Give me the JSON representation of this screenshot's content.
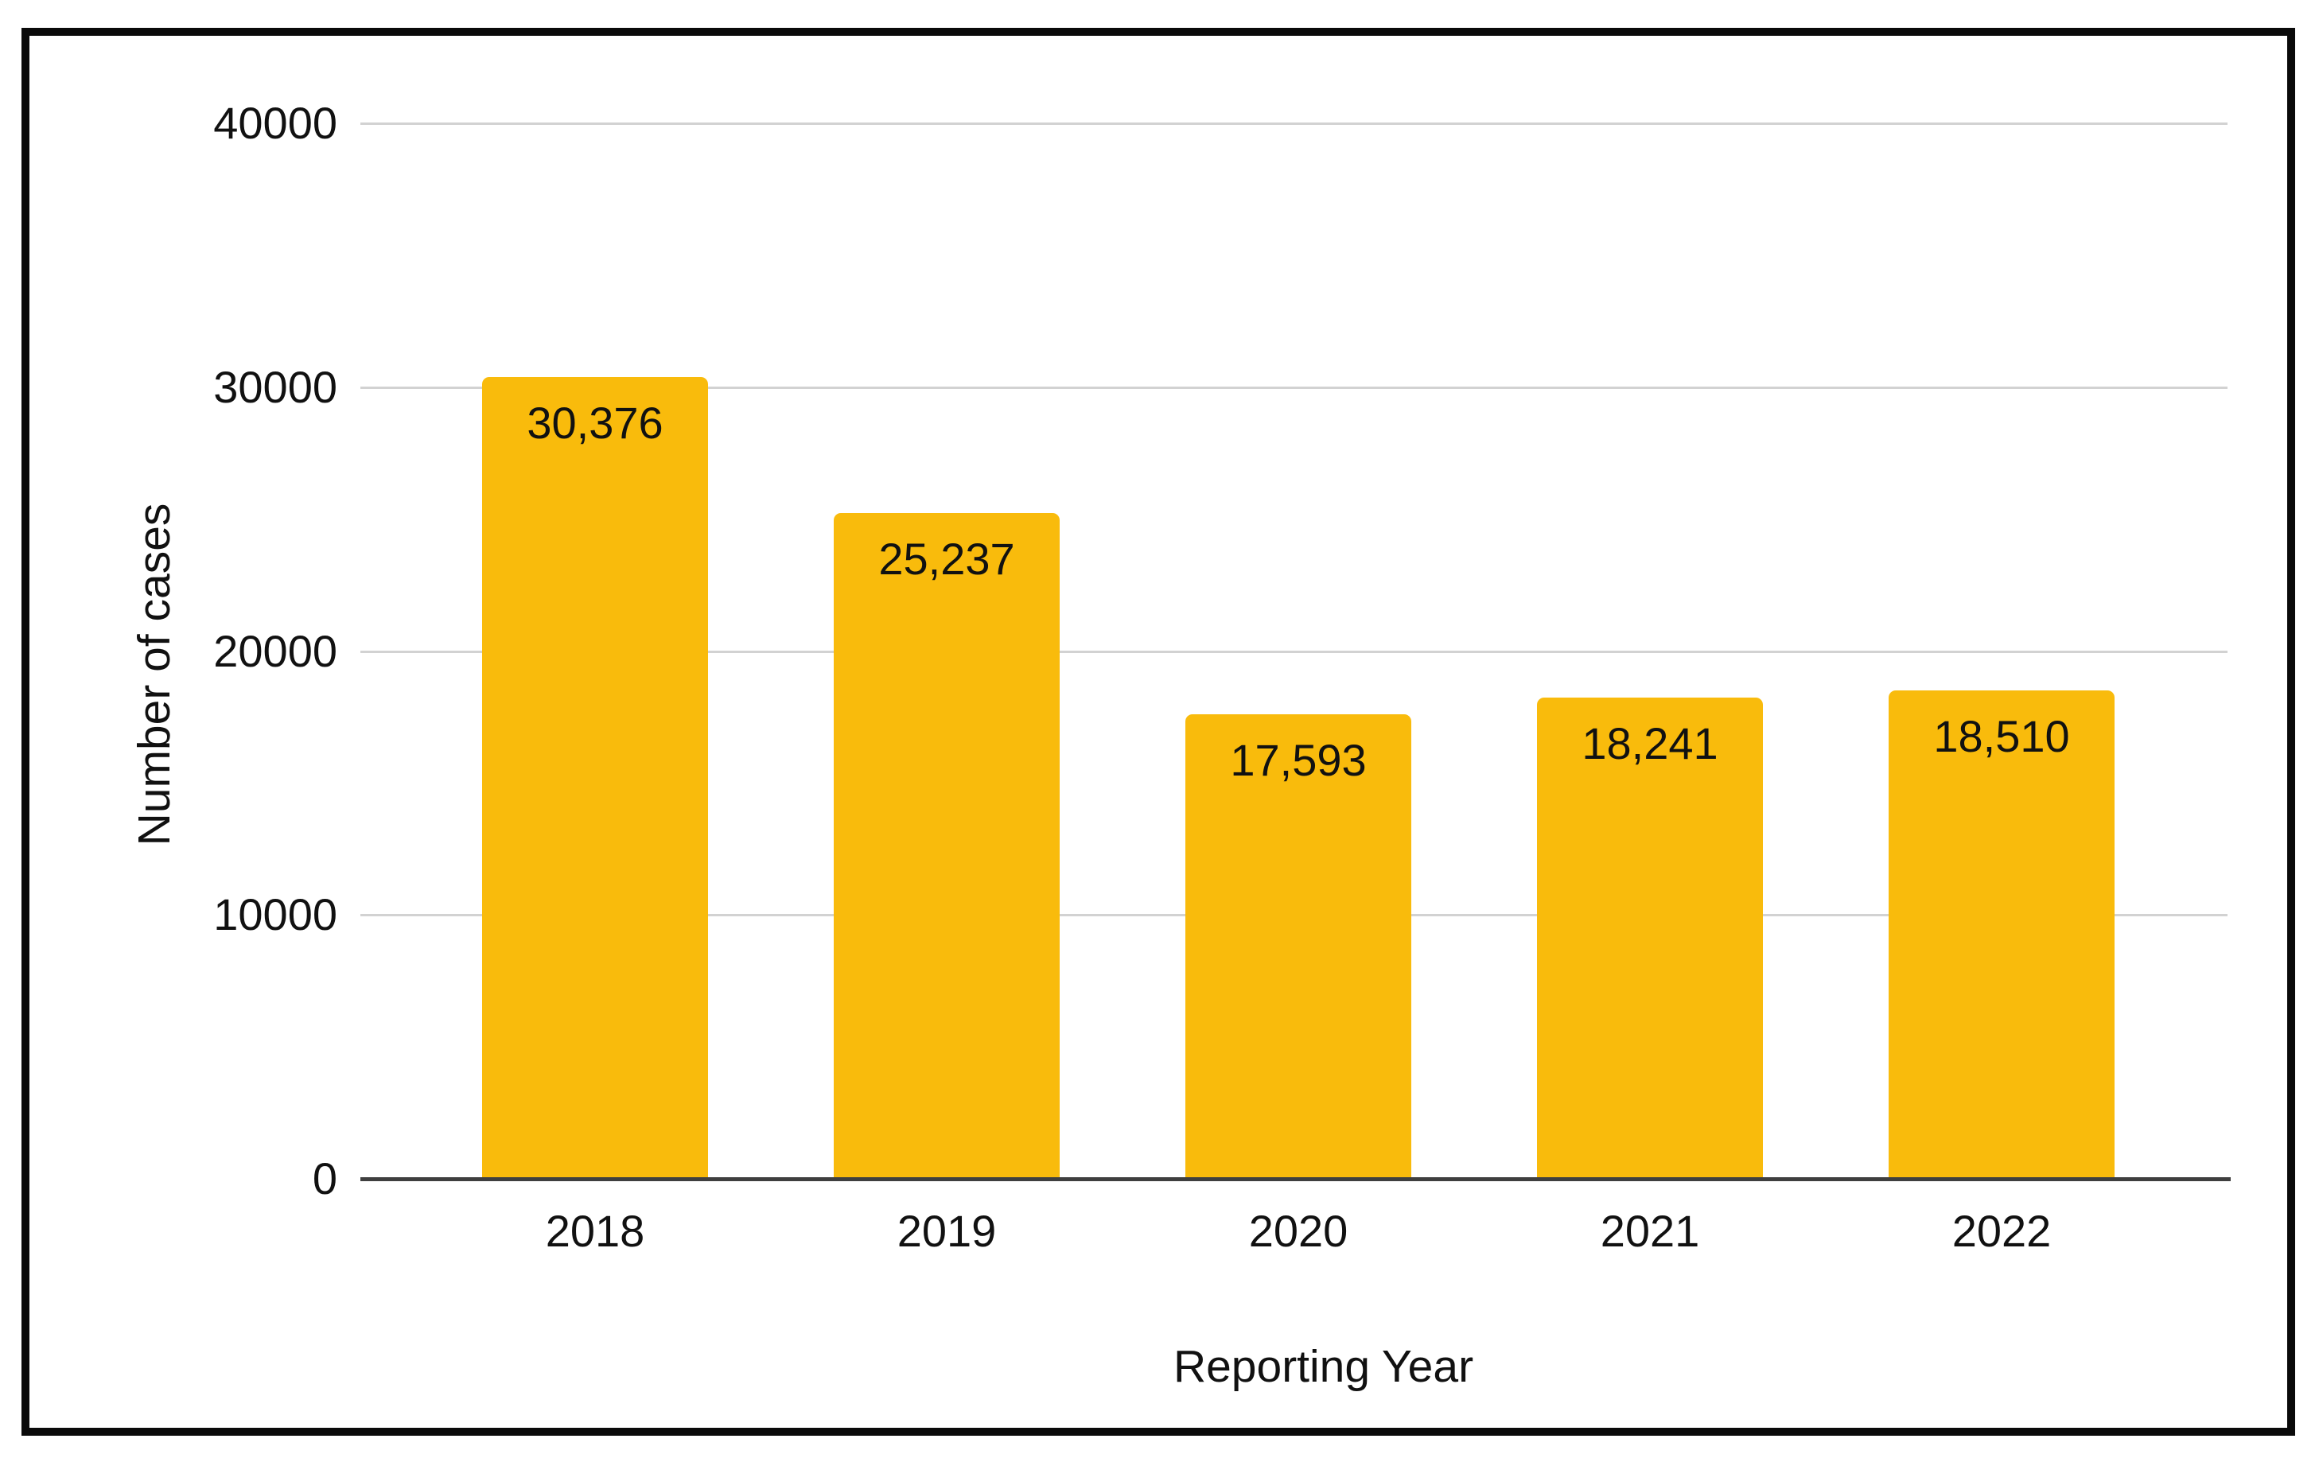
{
  "chart_data": {
    "type": "bar",
    "title": "",
    "categories": [
      "2018",
      "2019",
      "2020",
      "2021",
      "2022"
    ],
    "values": [
      30376,
      25237,
      17593,
      18241,
      18510
    ],
    "value_labels": [
      "30,376",
      "25,237",
      "17,593",
      "18,241",
      "18,510"
    ],
    "xlabel": "Reporting Year",
    "ylabel": "Number of cases",
    "ylim": [
      0,
      40000
    ],
    "yticks": [
      0,
      10000,
      20000,
      30000,
      40000
    ],
    "ytick_labels": [
      "0",
      "10000",
      "20000",
      "30000",
      "40000"
    ],
    "grid": "horizontal gridlines on",
    "legend": "none",
    "data_labels_position": "inside-top",
    "colors": {
      "bar": "#F9BB0C",
      "gridline": "#d2d2d2",
      "axis_line": "#3f3f3f",
      "text": "#111111",
      "frame_border": "#0a0a0a",
      "background": "#ffffff"
    }
  }
}
